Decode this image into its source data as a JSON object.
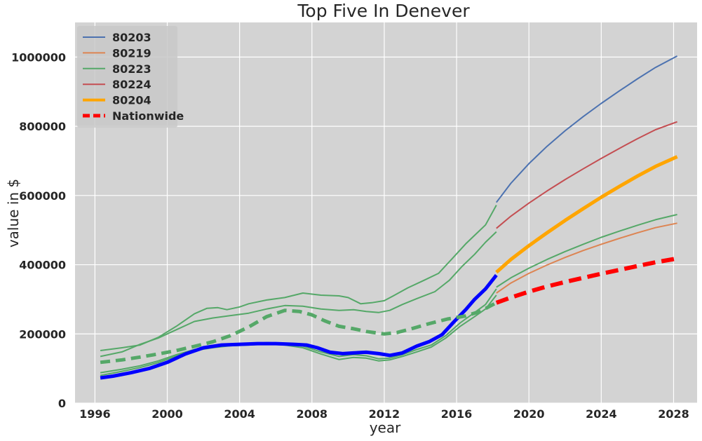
{
  "chart_data": {
    "type": "line",
    "title": "Top Five In Denever",
    "xlabel": "year",
    "ylabel": "value in $",
    "xlim": [
      1994.9,
      2029.3
    ],
    "ylim": [
      0,
      1100000
    ],
    "xticks": [
      1996,
      2000,
      2004,
      2008,
      2012,
      2016,
      2020,
      2024,
      2028
    ],
    "yticks": [
      0,
      200000,
      400000,
      600000,
      800000,
      1000000
    ],
    "grid": true,
    "legend_position": "top-left",
    "background_color": "#d3d3d3",
    "legend": [
      {
        "name": "80203",
        "color": "#4c72b0",
        "style": "solid",
        "width": 2
      },
      {
        "name": "80219",
        "color": "#dd8452",
        "style": "solid",
        "width": 2
      },
      {
        "name": "80223",
        "color": "#55a868",
        "style": "solid",
        "width": 2
      },
      {
        "name": "80224",
        "color": "#c44e52",
        "style": "solid",
        "width": 2
      },
      {
        "name": "80204",
        "color": "#ffa500",
        "style": "solid",
        "width": 4
      },
      {
        "name": "Nationwide",
        "color": "#ff0000",
        "style": "dashed",
        "width": 5
      }
    ],
    "series": [
      {
        "key": "hist_top",
        "color": "#55a868",
        "width": 2,
        "dash": "",
        "points": [
          [
            1996.3,
            152000
          ],
          [
            1997.5,
            160000
          ],
          [
            1998.5,
            168000
          ],
          [
            1999.5,
            190000
          ],
          [
            2000.5,
            222000
          ],
          [
            2001.5,
            258000
          ],
          [
            2002.2,
            274000
          ],
          [
            2002.8,
            276000
          ],
          [
            2003.3,
            270000
          ],
          [
            2004.0,
            278000
          ],
          [
            2004.5,
            287000
          ],
          [
            2005.5,
            298000
          ],
          [
            2006.5,
            305000
          ],
          [
            2007.5,
            318000
          ],
          [
            2008.5,
            312000
          ],
          [
            2009.5,
            310000
          ],
          [
            2010.0,
            305000
          ],
          [
            2010.7,
            287000
          ],
          [
            2011.3,
            290000
          ],
          [
            2012.0,
            296000
          ],
          [
            2012.5,
            310000
          ],
          [
            2013.3,
            333000
          ],
          [
            2014.2,
            355000
          ],
          [
            2015.0,
            375000
          ],
          [
            2015.8,
            420000
          ],
          [
            2016.5,
            460000
          ],
          [
            2017.0,
            485000
          ],
          [
            2017.6,
            515000
          ],
          [
            2018.2,
            572000
          ]
        ]
      },
      {
        "key": "hist_second",
        "color": "#55a868",
        "width": 2,
        "dash": "",
        "points": [
          [
            1996.3,
            135000
          ],
          [
            1997.5,
            148000
          ],
          [
            1998.5,
            170000
          ],
          [
            1999.5,
            188000
          ],
          [
            2000.5,
            212000
          ],
          [
            2001.5,
            236000
          ],
          [
            2002.5,
            246000
          ],
          [
            2003.5,
            253000
          ],
          [
            2004.5,
            260000
          ],
          [
            2005.5,
            272000
          ],
          [
            2006.5,
            282000
          ],
          [
            2007.5,
            280000
          ],
          [
            2008.5,
            272000
          ],
          [
            2009.5,
            268000
          ],
          [
            2010.3,
            270000
          ],
          [
            2011.0,
            265000
          ],
          [
            2011.7,
            262000
          ],
          [
            2012.3,
            268000
          ],
          [
            2013.0,
            285000
          ],
          [
            2013.8,
            302000
          ],
          [
            2014.8,
            322000
          ],
          [
            2015.6,
            355000
          ],
          [
            2016.3,
            395000
          ],
          [
            2017.0,
            430000
          ],
          [
            2017.6,
            465000
          ],
          [
            2018.2,
            495000
          ]
        ]
      },
      {
        "key": "hist_low_a",
        "color": "#55a868",
        "width": 2,
        "dash": "",
        "points": [
          [
            1996.3,
            88000
          ],
          [
            1997.5,
            98000
          ],
          [
            1998.5,
            108000
          ],
          [
            1999.5,
            122000
          ],
          [
            2000.5,
            140000
          ],
          [
            2001.5,
            155000
          ],
          [
            2002.5,
            163000
          ],
          [
            2003.5,
            168000
          ],
          [
            2004.5,
            170000
          ],
          [
            2005.5,
            175000
          ],
          [
            2006.5,
            172000
          ],
          [
            2007.5,
            165000
          ],
          [
            2008.5,
            148000
          ],
          [
            2009.5,
            135000
          ],
          [
            2010.3,
            140000
          ],
          [
            2011.0,
            137000
          ],
          [
            2011.7,
            128000
          ],
          [
            2012.3,
            130000
          ],
          [
            2013.0,
            140000
          ],
          [
            2013.8,
            155000
          ],
          [
            2014.6,
            168000
          ],
          [
            2015.4,
            195000
          ],
          [
            2016.2,
            232000
          ],
          [
            2017.0,
            262000
          ],
          [
            2017.6,
            285000
          ],
          [
            2018.2,
            330000
          ]
        ]
      },
      {
        "key": "hist_low_b",
        "color": "#55a868",
        "width": 2,
        "dash": "",
        "points": [
          [
            1996.3,
            80000
          ],
          [
            1997.5,
            92000
          ],
          [
            1998.5,
            103000
          ],
          [
            1999.5,
            117000
          ],
          [
            2000.5,
            136000
          ],
          [
            2001.5,
            152000
          ],
          [
            2002.5,
            160000
          ],
          [
            2003.5,
            166000
          ],
          [
            2004.5,
            168000
          ],
          [
            2005.5,
            171000
          ],
          [
            2006.5,
            168000
          ],
          [
            2007.5,
            160000
          ],
          [
            2008.5,
            142000
          ],
          [
            2009.5,
            126000
          ],
          [
            2010.3,
            132000
          ],
          [
            2011.0,
            130000
          ],
          [
            2011.7,
            122000
          ],
          [
            2012.3,
            125000
          ],
          [
            2013.0,
            135000
          ],
          [
            2013.8,
            148000
          ],
          [
            2014.6,
            162000
          ],
          [
            2015.4,
            188000
          ],
          [
            2016.2,
            222000
          ],
          [
            2017.0,
            250000
          ],
          [
            2017.6,
            272000
          ],
          [
            2018.2,
            312000
          ]
        ]
      },
      {
        "key": "hist_80204",
        "color": "#0000ff",
        "width": 5,
        "dash": "",
        "points": [
          [
            1996.3,
            73000
          ],
          [
            1997.0,
            78000
          ],
          [
            1998.0,
            88000
          ],
          [
            1999.0,
            100000
          ],
          [
            2000.0,
            118000
          ],
          [
            2001.0,
            142000
          ],
          [
            2002.0,
            160000
          ],
          [
            2003.0,
            168000
          ],
          [
            2004.0,
            170000
          ],
          [
            2005.0,
            172000
          ],
          [
            2006.0,
            172000
          ],
          [
            2007.0,
            170000
          ],
          [
            2007.7,
            168000
          ],
          [
            2008.3,
            160000
          ],
          [
            2009.0,
            147000
          ],
          [
            2009.7,
            143000
          ],
          [
            2010.3,
            145000
          ],
          [
            2011.0,
            147000
          ],
          [
            2011.7,
            143000
          ],
          [
            2012.3,
            138000
          ],
          [
            2013.0,
            145000
          ],
          [
            2013.8,
            165000
          ],
          [
            2014.5,
            178000
          ],
          [
            2015.2,
            198000
          ],
          [
            2015.8,
            232000
          ],
          [
            2016.5,
            270000
          ],
          [
            2017.0,
            300000
          ],
          [
            2017.6,
            330000
          ],
          [
            2018.2,
            370000
          ]
        ]
      },
      {
        "key": "hist_nationwide",
        "color": "#55a868",
        "width": 5,
        "dash": "14,8",
        "points": [
          [
            1996.3,
            118000
          ],
          [
            1997.5,
            125000
          ],
          [
            1998.5,
            133000
          ],
          [
            1999.5,
            142000
          ],
          [
            2000.5,
            152000
          ],
          [
            2001.5,
            164000
          ],
          [
            2002.5,
            177000
          ],
          [
            2003.5,
            195000
          ],
          [
            2004.5,
            220000
          ],
          [
            2005.5,
            250000
          ],
          [
            2006.5,
            268000
          ],
          [
            2007.3,
            265000
          ],
          [
            2008.0,
            255000
          ],
          [
            2008.7,
            238000
          ],
          [
            2009.5,
            222000
          ],
          [
            2010.3,
            215000
          ],
          [
            2011.0,
            207000
          ],
          [
            2012.0,
            200000
          ],
          [
            2012.7,
            204000
          ],
          [
            2013.5,
            215000
          ],
          [
            2014.5,
            230000
          ],
          [
            2015.5,
            243000
          ],
          [
            2016.5,
            252000
          ],
          [
            2017.3,
            265000
          ],
          [
            2018.2,
            290000
          ]
        ]
      },
      {
        "key": "fc_80203",
        "color": "#4c72b0",
        "width": 2,
        "dash": "",
        "points": [
          [
            2018.2,
            580000
          ],
          [
            2019.0,
            635000
          ],
          [
            2020.0,
            692000
          ],
          [
            2021.0,
            742000
          ],
          [
            2022.0,
            787000
          ],
          [
            2023.0,
            828000
          ],
          [
            2024.0,
            866000
          ],
          [
            2025.0,
            902000
          ],
          [
            2026.0,
            937000
          ],
          [
            2027.0,
            970000
          ],
          [
            2028.2,
            1003000
          ]
        ]
      },
      {
        "key": "fc_80224",
        "color": "#c44e52",
        "width": 2,
        "dash": "",
        "points": [
          [
            2018.2,
            505000
          ],
          [
            2019.0,
            540000
          ],
          [
            2020.0,
            578000
          ],
          [
            2021.0,
            613000
          ],
          [
            2022.0,
            646000
          ],
          [
            2023.0,
            677000
          ],
          [
            2024.0,
            707000
          ],
          [
            2025.0,
            736000
          ],
          [
            2026.0,
            764000
          ],
          [
            2027.0,
            790000
          ],
          [
            2028.2,
            813000
          ]
        ]
      },
      {
        "key": "fc_80204",
        "color": "#ffa500",
        "width": 5,
        "dash": "",
        "points": [
          [
            2018.2,
            378000
          ],
          [
            2019.0,
            415000
          ],
          [
            2020.0,
            455000
          ],
          [
            2021.0,
            492000
          ],
          [
            2022.0,
            528000
          ],
          [
            2023.0,
            562000
          ],
          [
            2024.0,
            595000
          ],
          [
            2025.0,
            626000
          ],
          [
            2026.0,
            656000
          ],
          [
            2027.0,
            684000
          ],
          [
            2028.2,
            712000
          ]
        ]
      },
      {
        "key": "fc_80223",
        "color": "#55a868",
        "width": 2,
        "dash": "",
        "points": [
          [
            2018.2,
            335000
          ],
          [
            2019.0,
            362000
          ],
          [
            2020.0,
            390000
          ],
          [
            2021.0,
            415000
          ],
          [
            2022.0,
            438000
          ],
          [
            2023.0,
            459000
          ],
          [
            2024.0,
            479000
          ],
          [
            2025.0,
            497000
          ],
          [
            2026.0,
            514000
          ],
          [
            2027.0,
            530000
          ],
          [
            2028.2,
            545000
          ]
        ]
      },
      {
        "key": "fc_80219",
        "color": "#dd8452",
        "width": 2,
        "dash": "",
        "points": [
          [
            2018.2,
            318000
          ],
          [
            2019.0,
            347000
          ],
          [
            2020.0,
            375000
          ],
          [
            2021.0,
            399000
          ],
          [
            2022.0,
            421000
          ],
          [
            2023.0,
            441000
          ],
          [
            2024.0,
            459000
          ],
          [
            2025.0,
            476000
          ],
          [
            2026.0,
            492000
          ],
          [
            2027.0,
            507000
          ],
          [
            2028.2,
            520000
          ]
        ]
      },
      {
        "key": "fc_nationwide",
        "color": "#ff0000",
        "width": 6,
        "dash": "18,9",
        "points": [
          [
            2018.2,
            290000
          ],
          [
            2019.0,
            305000
          ],
          [
            2020.0,
            322000
          ],
          [
            2021.0,
            337000
          ],
          [
            2022.0,
            350000
          ],
          [
            2023.0,
            362000
          ],
          [
            2024.0,
            374000
          ],
          [
            2025.0,
            385000
          ],
          [
            2026.0,
            396000
          ],
          [
            2027.0,
            407000
          ],
          [
            2028.2,
            418000
          ]
        ]
      }
    ]
  }
}
